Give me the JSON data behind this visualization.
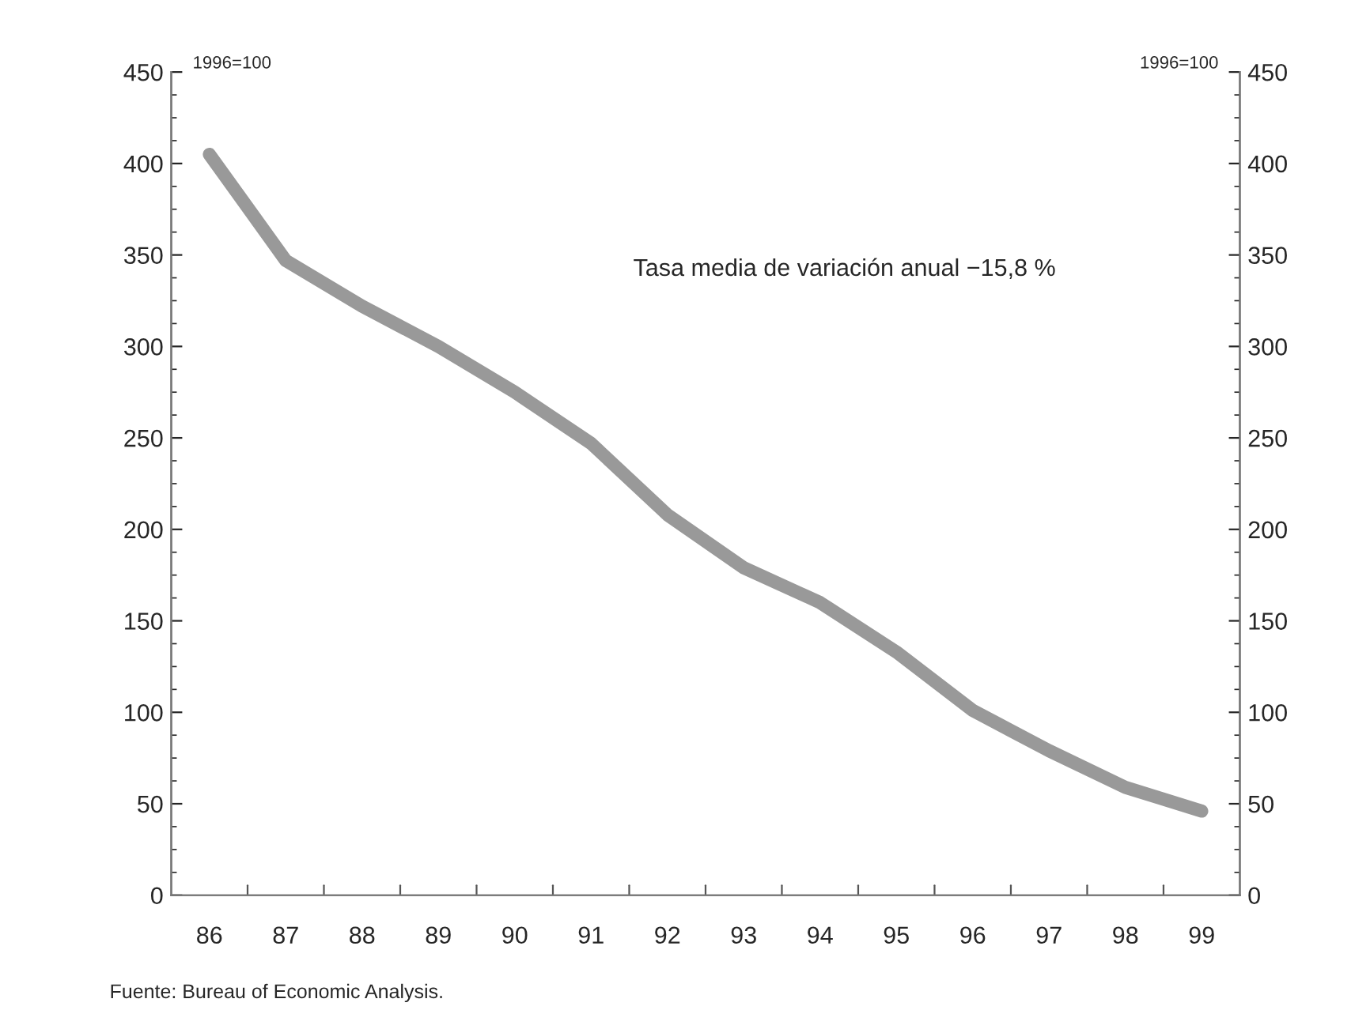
{
  "chart_data": {
    "type": "line",
    "ylabel": "1996=100",
    "y2label": "1996=100",
    "categories": [
      "86",
      "87",
      "88",
      "89",
      "90",
      "91",
      "92",
      "93",
      "94",
      "95",
      "96",
      "97",
      "98",
      "99"
    ],
    "series": [
      {
        "color": "#999999",
        "values": [
          405,
          347,
          322,
          300,
          275,
          247,
          208,
          179,
          160,
          133,
          101,
          79,
          59,
          46
        ]
      }
    ],
    "ylim": [
      0,
      450
    ],
    "yticks": [
      0,
      50,
      100,
      150,
      200,
      250,
      300,
      350,
      400,
      450
    ],
    "y2lim": [
      0,
      450
    ],
    "y2ticks": [
      0,
      50,
      100,
      150,
      200,
      250,
      300,
      350,
      400,
      450
    ],
    "annotations": [
      "Tasa media de variación anual −15,8 %",
      "Fuente: Bureau of Economic Analysis."
    ],
    "grid": false,
    "legend": false,
    "marker": "none",
    "line_style": "solid"
  }
}
